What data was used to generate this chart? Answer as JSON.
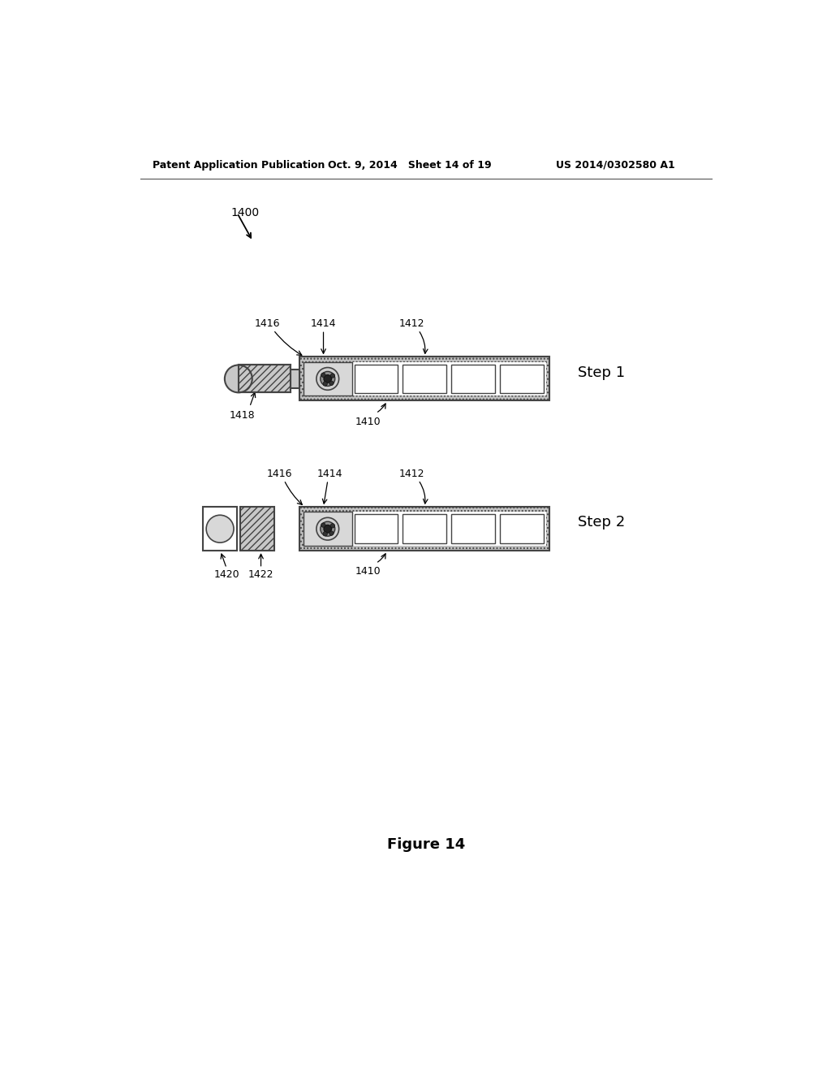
{
  "bg_color": "#ffffff",
  "text_color": "#000000",
  "header_left": "Patent Application Publication",
  "header_mid": "Oct. 9, 2014   Sheet 14 of 19",
  "header_right": "US 2014/0302580 A1",
  "label_1400": "1400",
  "step1_label": "Step 1",
  "step2_label": "Step 2",
  "figure_label": "Figure 14",
  "gray_fill": "#c8c8c8",
  "outline_color": "#444444",
  "cell_fill": "#ffffff",
  "channel_border_gray": "#888888",
  "label_fontsize": 9,
  "step_fontsize": 13
}
